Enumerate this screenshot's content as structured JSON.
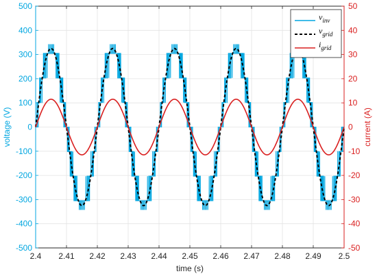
{
  "chart_data": {
    "type": "line",
    "title": "",
    "xlabel": "time (s)",
    "ylabel_left": "voltage (V)",
    "ylabel_right": "current (A)",
    "xlim": [
      2.4,
      2.5
    ],
    "ylim_left": [
      -500,
      500
    ],
    "ylim_right": [
      -50,
      50
    ],
    "x_ticks": [
      "2.4",
      "2.41",
      "2.42",
      "2.43",
      "2.44",
      "2.45",
      "2.46",
      "2.47",
      "2.48",
      "2.49",
      "2.5"
    ],
    "y_left_ticks": [
      "500",
      "400",
      "300",
      "200",
      "100",
      "0",
      "-100",
      "-200",
      "-300",
      "-400",
      "-500"
    ],
    "y_right_ticks": [
      "50",
      "40",
      "30",
      "20",
      "10",
      "0",
      "-10",
      "-20",
      "-30",
      "-40",
      "-50"
    ],
    "grid": true,
    "legend_position": "top-right",
    "frequency_hz": 50,
    "series": [
      {
        "name_main": "v",
        "name_sub": "inv",
        "axis": "left",
        "style": "solid",
        "color": "#00a6e0",
        "amplitude": 325,
        "phase_deg": 0,
        "waveform": "multilevel-staircase-pwm"
      },
      {
        "name_main": "v",
        "name_sub": "grid",
        "axis": "left",
        "style": "dashed",
        "color": "#000000",
        "amplitude": 325,
        "phase_deg": 0,
        "waveform": "sine"
      },
      {
        "name_main": "i",
        "name_sub": "grid",
        "axis": "right",
        "style": "solid",
        "color": "#d91e1e",
        "amplitude": 11.5,
        "phase_deg": 0,
        "waveform": "sine"
      }
    ],
    "colors": {
      "left_axis": "#00a6e0",
      "right_axis": "#d91e1e",
      "grid": "#e3e3e3",
      "frame": "#262626"
    }
  }
}
